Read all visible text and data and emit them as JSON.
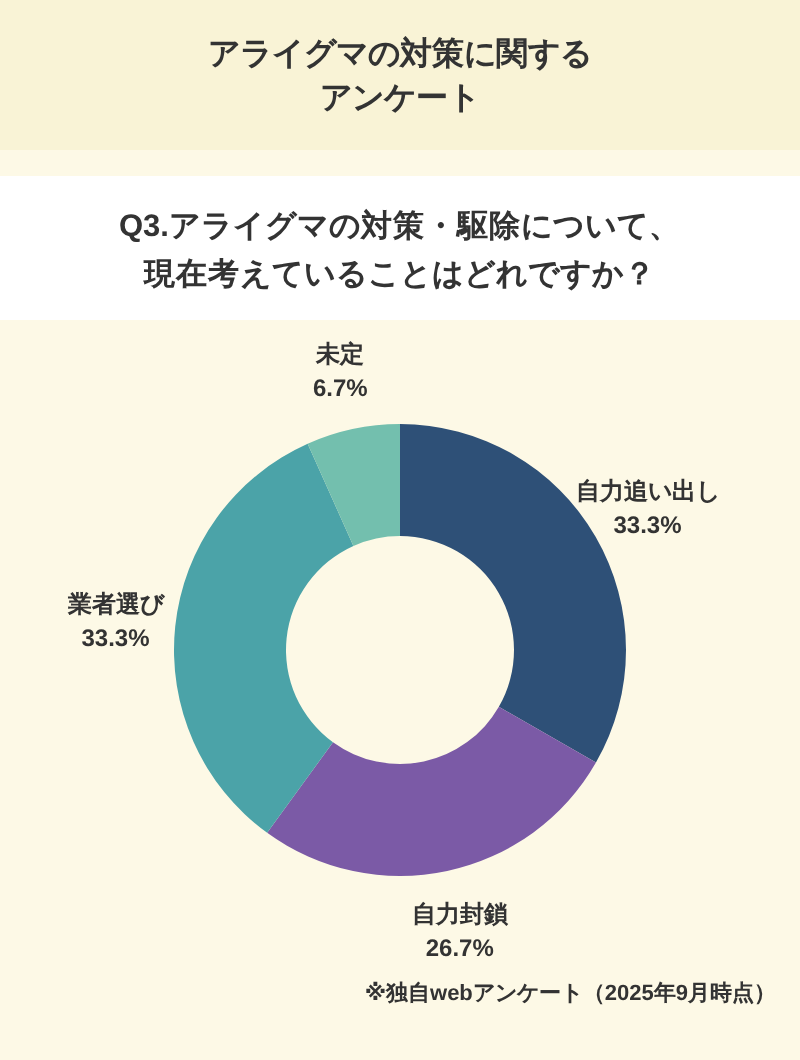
{
  "chart_data": {
    "type": "donut",
    "title": "アライグマの対策に関するアンケート",
    "subtitle": "Q3.アライグマの対策・駆除について、現在考えていることはどれですか？",
    "categories": [
      "自力追い出し",
      "自力封鎖",
      "業者選び",
      "未定"
    ],
    "values": [
      33.3,
      26.7,
      33.3,
      6.7
    ],
    "value_labels": [
      "33.3%",
      "26.7%",
      "33.3%",
      "6.7%"
    ],
    "colors": [
      "#2e5077",
      "#7b5aa6",
      "#4ba3a8",
      "#73bfae"
    ],
    "annotations": [
      "※独自webアンケート（2025年9月時点）"
    ]
  }
}
